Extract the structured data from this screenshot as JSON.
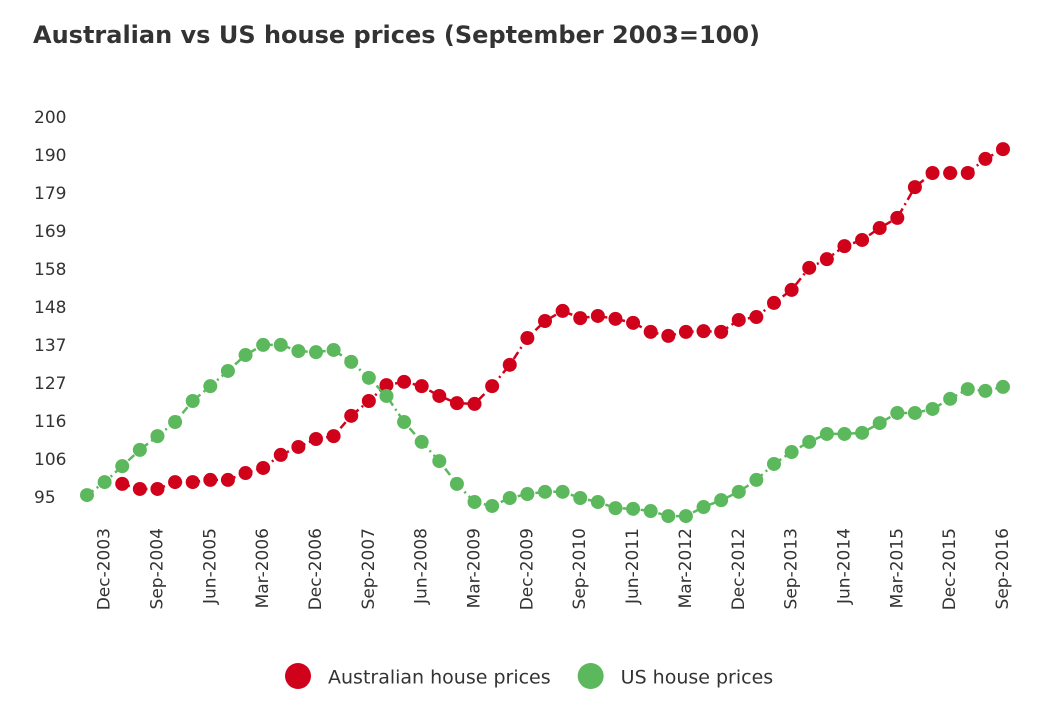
{
  "chart_data": {
    "type": "line",
    "title": "Australian vs US house prices  (September 2003=100)",
    "categories": [
      null,
      "Dec-2003",
      null,
      null,
      "Sep-2004",
      null,
      null,
      "Jun-2005",
      null,
      null,
      "Mar-2006",
      null,
      null,
      "Dec-2006",
      null,
      null,
      "Sep-2007",
      null,
      null,
      "Jun-2008",
      null,
      null,
      "Mar-2009",
      null,
      null,
      "Dec-2009",
      null,
      null,
      "Sep-2010",
      null,
      null,
      "Jun-2011",
      null,
      null,
      "Mar-2012",
      null,
      null,
      "Dec-2012",
      null,
      null,
      "Sep-2013",
      null,
      null,
      "Jun-2014",
      null,
      null,
      "Mar-2015",
      null,
      null,
      "Dec-2015",
      null,
      null,
      "Sep-2016"
    ],
    "series": [
      {
        "name": "Australian house prices",
        "color": "#d0021b",
        "values": [
          null,
          null,
          98.9,
          97.5,
          97.5,
          99.4,
          99.4,
          100,
          100,
          101.9,
          103.3,
          106.9,
          109.1,
          111.3,
          112.1,
          117.7,
          121.8,
          126.2,
          127.1,
          125.9,
          123.2,
          121.2,
          121,
          125.9,
          131.8,
          139.2,
          143.9,
          146.7,
          144.7,
          145.3,
          144.5,
          143.4,
          140.9,
          139.8,
          140.9,
          141.1,
          140.9,
          144.2,
          145,
          148.9,
          152.5,
          158.6,
          161,
          164.6,
          166.3,
          169.6,
          172.4,
          180.9,
          184.8,
          184.8,
          184.8,
          188.7,
          191.4
        ]
      },
      {
        "name": "US house prices",
        "color": "#5cb85c",
        "values": [
          95.8,
          99.4,
          103.8,
          108.3,
          112.1,
          116,
          121.8,
          125.9,
          130.1,
          134.5,
          137.3,
          137.3,
          135.6,
          135.3,
          135.9,
          132.6,
          128.2,
          123.2,
          116,
          110.5,
          105.2,
          98.9,
          93.9,
          92.8,
          95,
          96.1,
          96.7,
          96.7,
          95,
          93.9,
          92.2,
          92,
          91.4,
          90,
          90,
          92.5,
          94.4,
          96.7,
          100,
          104.4,
          107.7,
          110.5,
          112.7,
          112.7,
          113,
          115.7,
          118.5,
          118.5,
          119.6,
          122.4,
          125.1,
          124.6,
          125.7
        ]
      }
    ],
    "ylim": [
      95,
      200
    ],
    "yticks": [
      95,
      {
        "value": 105.5,
        "label": "106"
      },
      116,
      {
        "value": 126.5,
        "label": "127"
      },
      137,
      {
        "value": 147.5,
        "label": "148"
      },
      158,
      {
        "value": 168.5,
        "label": "169"
      },
      179,
      {
        "value": 189.5,
        "label": "190"
      },
      200
    ]
  }
}
